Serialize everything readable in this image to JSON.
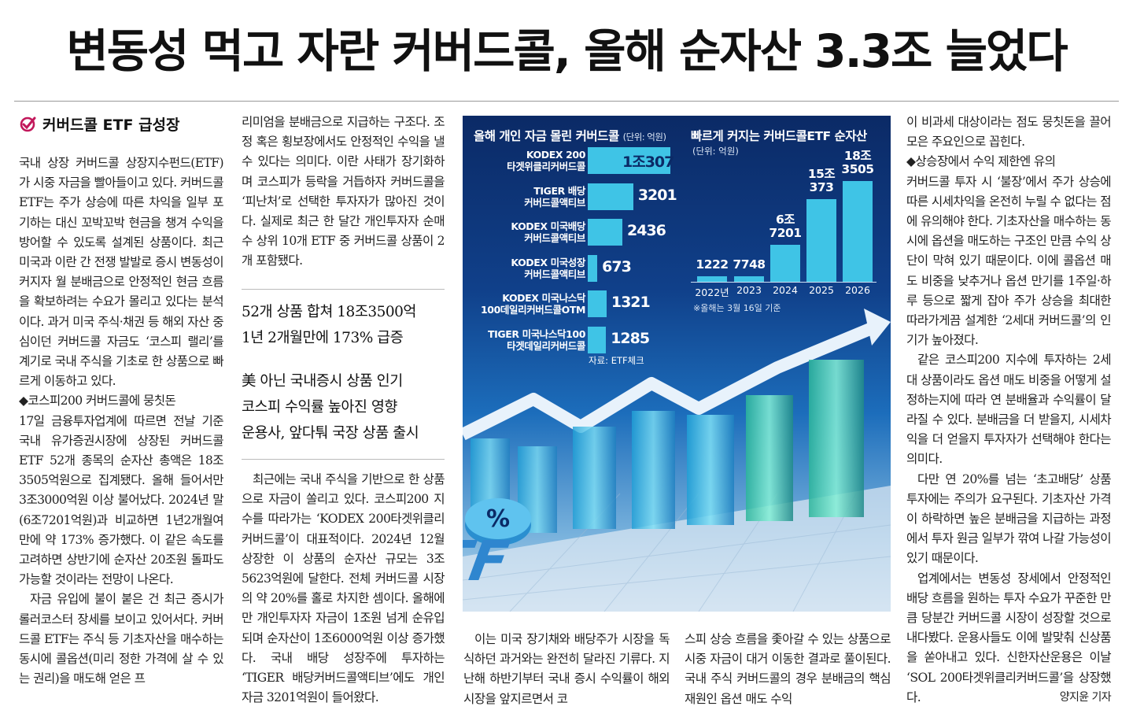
{
  "headline": "변동성 먹고 자란 커버드콜, 올해 순자산 3.3조 늘었다",
  "section_title": "커버드콜 ETF 급성장",
  "col1": [
    "국내 상장 커버드콜 상장지수펀드(ETF)가 시중 자금을 빨아들이고 있다. 커버드콜 ETF는 주가 상승에 따른 차익을 일부 포기하는 대신 꼬박꼬박 현금을 챙겨 수익을 방어할 수 있도록 설계된 상품이다. 최근 미국과 이란 간 전쟁 발발로 증시 변동성이 커지자 월 분배금으로 안정적인 현금 흐름을 확보하려는 수요가 몰리고 있다는 분석이다. 과거 미국 주식·채권 등 해외 자산 중심이던 커버드콜 자금도 ‘코스피 랠리’를 계기로 국내 주식을 기초로 한 상품으로 빠르게 이동하고 있다.",
    "◆코스피200 커버드콜에 뭉칫돈",
    "17일 금융투자업계에 따르면 전날 기준 국내 유가증권시장에 상장된 커버드콜 ETF 52개 종목의 순자산 총액은 18조3505억원으로 집계됐다. 올해 들어서만 3조3000억원 이상 불어났다. 2024년 말(6조7201억원)과 비교하면 1년2개월여 만에 약 173% 증가했다. 이 같은 속도를 고려하면 상반기에 순자산 20조원 돌파도 가능할 것이라는 전망이 나온다.",
    "자금 유입에 불이 붙은 건 최근 증시가 롤러코스터 장세를 보이고 있어서다. 커버드콜 ETF는 주식 등 기초자산을 매수하는 동시에 콜옵션(미리 정한 가격에 살 수 있는 권리)을 매도해 얻은 프"
  ],
  "col2_top": "리미엄을 분배금으로 지급하는 구조다. 조정 혹은 횡보장에서도 안정적인 수익을 낼 수 있다는 의미다. 이란 사태가 장기화하며 코스피가 등락을 거듭하자 커버드콜을 ‘피난처’로 선택한 투자자가 많아진 것이다. 실제로 최근 한 달간 개인투자자 순매수 상위 10개 ETF 중 커버드콜 상품이 2개 포함됐다.",
  "subhead1": [
    "52개 상품 합쳐 18조3500억",
    "1년 2개월만에 173% 급증"
  ],
  "subhead2": [
    "美 아닌 국내증시 상품 인기",
    "코스피 수익률 높아진 영향",
    "운용사, 앞다퉈 국장 상품 출시"
  ],
  "col2_bottom": "최근에는 국내 주식을 기반으로 한 상품으로 자금이 쏠리고 있다. 코스피200 지수를 따라가는 ‘KODEX 200타겟위클리커버드콜’이 대표적이다. 2024년 12월 상장한 이 상품의 순자산 규모는 3조5623억원에 달한다. 전체 커버드콜 시장의 약 20%를 홀로 차지한 셈이다. 올해에만 개인투자자 자금이 1조원 넘게 순유입되며 순자산이 1조6000억원 이상 증가했다. 국내 배당 성장주에 투자하는 ‘TIGER 배당커버드콜액티브’에도 개인 자금 3201억원이 들어왔다.",
  "col3b": "이는 미국 장기채와 배당주가 시장을 독식하던 과거와는 완전히 달라진 기류다. 지난해 하반기부터 국내 증시 수익률이 해외 시장을 앞지르면서 코",
  "col4b": "스피 상승 흐름을 좇아갈 수 있는 상품으로 시중 자금이 대거 이동한 결과로 풀이된다. 국내 주식 커버드콜의 경우 분배금의 핵심 재원인 옵션 매도 수익",
  "col5": [
    "이 비과세 대상이라는 점도 뭉칫돈을 끌어모은 주요인으로 꼽힌다.",
    "◆상승장에서 수익 제한엔 유의",
    "커버드콜 투자 시 ‘불장’에서 주가 상승에 따른 시세차익을 온전히 누릴 수 없다는 점에 유의해야 한다. 기초자산을 매수하는 동시에 옵션을 매도하는 구조인 만큼 수익 상단이 막혀 있기 때문이다. 이에 콜옵션 매도 비중을 낮추거나 옵션 만기를 1주일·하루 등으로 짧게 잡아 주가 상승을 최대한 따라가게끔 설계한 ‘2세대 커버드콜’의 인기가 높아졌다.",
    "같은 코스피200 지수에 투자하는 2세대 상품이라도 옵션 매도 비중을 어떻게 설정하는지에 따라 연 분배율과 수익률이 달라질 수 있다. 분배금을 더 받을지, 시세차익을 더 얻을지 투자자가 선택해야 한다는 의미다.",
    "다만 연 20%를 넘는 ‘초고배당’ 상품 투자에는 주의가 요구된다. 기초자산 가격이 하락하면 높은 분배금을 지급하는 과정에서 투자 원금 일부가 깎여 나갈 가능성이 있기 때문이다.",
    "업계에서는 변동성 장세에서 안정적인 배당 흐름을 원하는 투자 수요가 꾸준한 만큼 당분간 커버드콜 시장이 성장할 것으로 내다봤다. 운용사들도 이에 발맞춰 신상품을 쏟아내고 있다. 신한자산운용은 이날 ‘SOL 200타겟위클리커버드콜’을 상장했다."
  ],
  "byline": "양지윤 기자",
  "chart_data": [
    {
      "type": "bar",
      "orientation": "horizontal",
      "title": "올해 개인 자금 몰린 커버드콜",
      "unit": "(단위: 억원)",
      "categories": [
        [
          "KODEX 200",
          "타겟위클리커버드콜"
        ],
        [
          "TIGER 배당",
          "커버드콜액티브"
        ],
        [
          "KODEX 미국배당",
          "커버드콜액티브"
        ],
        [
          "KODEX 미국성장",
          "커버드콜액티브"
        ],
        [
          "KODEX 미국나스닥",
          "100데일리커버드콜OTM"
        ],
        [
          "TIGER 미국나스닥100",
          "타겟데일리커버드콜"
        ]
      ],
      "values": [
        10307,
        3201,
        2436,
        673,
        1321,
        1285
      ],
      "value_labels": [
        "1조307",
        "3201",
        "2436",
        "673",
        "1321",
        "1285"
      ],
      "source": "자료: ETF체크"
    },
    {
      "type": "bar",
      "title": "빠르게 커지는 커버드콜ETF 순자산",
      "unit": "(단위: 억원)",
      "categories": [
        "2022년",
        "2023",
        "2024",
        "2025",
        "2026"
      ],
      "values": [
        1222,
        7748,
        67201,
        150373,
        183505
      ],
      "value_labels": [
        [
          "1222"
        ],
        [
          "7748"
        ],
        [
          "6조",
          "7201"
        ],
        [
          "15조",
          "373"
        ],
        [
          "18조",
          "3505"
        ]
      ],
      "note": "※올해는 3월 16일 기준"
    }
  ],
  "colors": {
    "bar": "#3fc4e6",
    "panel": "#0b2a66"
  },
  "icons": {
    "section": "check-icon"
  }
}
